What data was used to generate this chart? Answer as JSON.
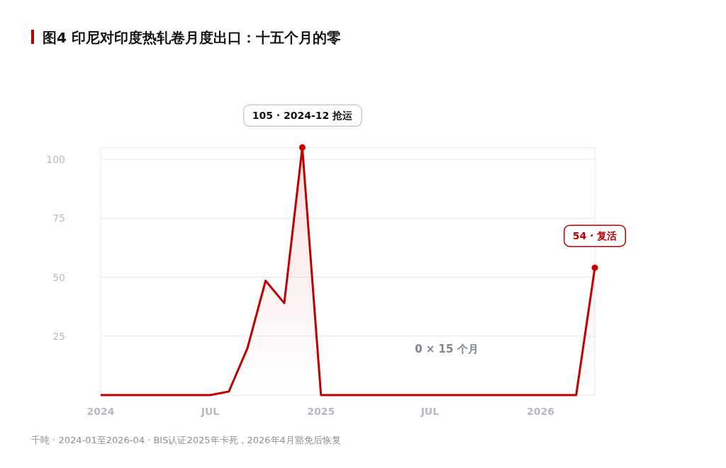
{
  "chart_data": {
    "type": "area",
    "title": "图4 印尼对印度热轧卷月度出口：十五个月的零",
    "x": [
      "2024-01",
      "2024-02",
      "2024-03",
      "2024-04",
      "2024-05",
      "2024-06",
      "2024-07",
      "2024-08",
      "2024-09",
      "2024-10",
      "2024-11",
      "2024-12",
      "2025-01",
      "2025-02",
      "2025-03",
      "2025-04",
      "2025-05",
      "2025-06",
      "2025-07",
      "2025-08",
      "2025-09",
      "2025-10",
      "2025-11",
      "2025-12",
      "2026-01",
      "2026-02",
      "2026-03",
      "2026-04"
    ],
    "series": [
      {
        "color": "#c00000",
        "values": [
          0,
          0,
          0,
          0,
          0,
          0,
          0,
          1.5,
          20,
          48.5,
          39,
          105,
          0,
          0,
          0,
          0,
          0,
          0,
          0,
          0,
          0,
          0,
          0,
          0,
          0,
          0,
          0,
          54
        ]
      },
      {
        "type": "scatter",
        "color": "#c00000",
        "x": [
          "2024-12",
          "2026-04"
        ],
        "values": [
          105,
          54
        ]
      }
    ],
    "xticks": [
      {
        "value": "2024-01",
        "label": "2024"
      },
      {
        "value": "2024-07",
        "label": "JUL"
      },
      {
        "value": "2025-01",
        "label": "2025"
      },
      {
        "value": "2025-07",
        "label": "JUL"
      },
      {
        "value": "2026-01",
        "label": "2026"
      }
    ],
    "xlim": [
      "2024-01",
      "2026-04"
    ],
    "ylim": [
      0,
      105
    ],
    "yticks": [
      25,
      50,
      75,
      100
    ],
    "grid": "y",
    "annotations": [
      {
        "text": "105 · 2024-12 抢运",
        "x": "2024-12",
        "y": 105
      },
      {
        "text": "54 · 复活",
        "x": "2026-04",
        "y": 54
      },
      "0 × 15 个月",
      "千吨 · 2024-01至2026-04 · BIS认证2025年卡死，2026年4月豁免后恢复"
    ]
  }
}
